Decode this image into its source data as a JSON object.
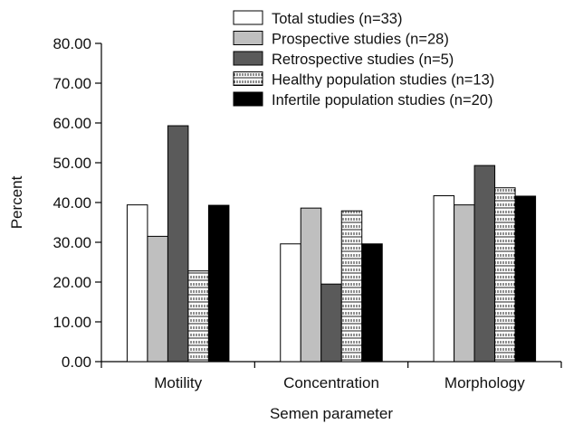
{
  "chart_data": {
    "type": "bar",
    "title": "",
    "xlabel": "Semen parameter",
    "ylabel": "Percent",
    "ylim": [
      0,
      80
    ],
    "yticks": [
      "0.00",
      "10.00",
      "20.00",
      "30.00",
      "40.00",
      "50.00",
      "60.00",
      "70.00",
      "80.00"
    ],
    "grid": false,
    "legend_position": "top-right",
    "categories": [
      "Motility",
      "Concentration",
      "Morphology"
    ],
    "series": [
      {
        "name": "Total studies (n=33)",
        "fill": "#ffffff",
        "pattern": "none",
        "values": [
          39.4,
          29.6,
          41.7
        ]
      },
      {
        "name": "Prospective studies (n=28)",
        "fill": "#bfbfbf",
        "pattern": "none",
        "values": [
          31.5,
          38.6,
          39.4
        ]
      },
      {
        "name": "Retrospective studies (n=5)",
        "fill": "#5a5a5a",
        "pattern": "none",
        "values": [
          59.3,
          19.5,
          49.3
        ]
      },
      {
        "name": "Healthy population studies (n=13)",
        "fill": "#ffffff",
        "pattern": "hatch",
        "values": [
          22.8,
          37.9,
          43.7
        ]
      },
      {
        "name": "Infertile population studies (n=20)",
        "fill": "#000000",
        "pattern": "none",
        "values": [
          39.3,
          29.6,
          41.6
        ]
      }
    ]
  }
}
